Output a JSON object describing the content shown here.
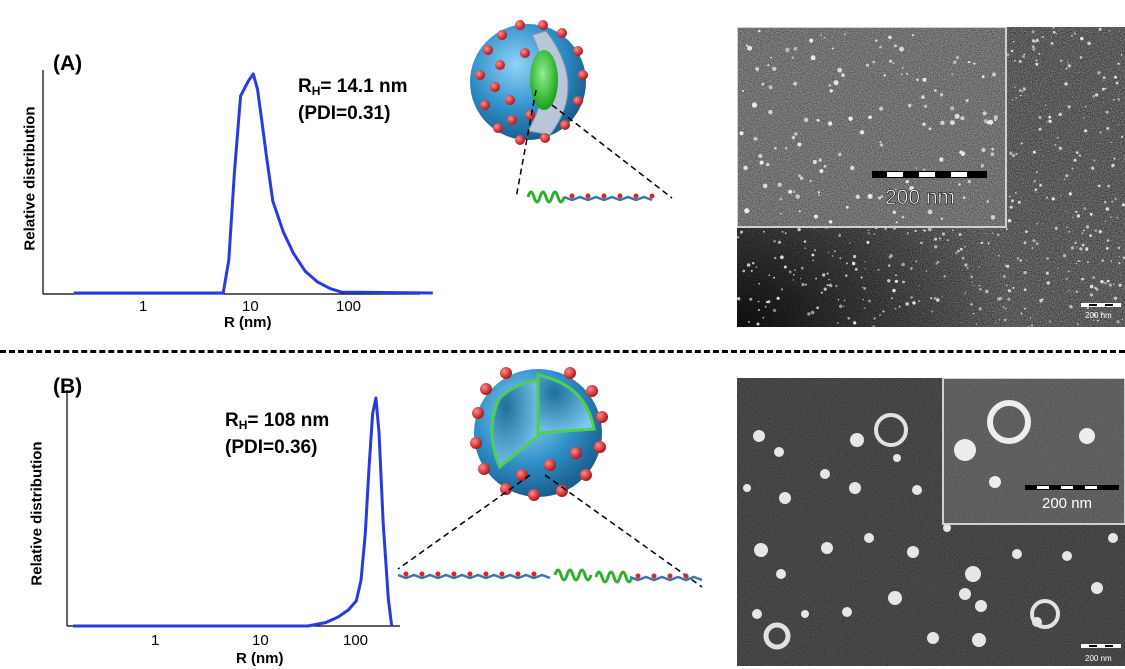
{
  "panel_a": {
    "label": "(A)",
    "rh_prefix": "R",
    "rh_sub": "H",
    "rh_value": "= 14.1 nm",
    "pdi": "(PDI=0.31)",
    "micrograph_scale_main": "200 nm",
    "micrograph_scale_inset": "200 nm"
  },
  "panel_b": {
    "label": "(B)",
    "rh_prefix": "R",
    "rh_sub": "H",
    "rh_value": "= 108 nm",
    "pdi": "(PDI=0.36)",
    "micrograph_scale_main": "200 nm",
    "micrograph_scale_inset": "200 nm"
  },
  "colors": {
    "curve": "#2a3adf",
    "sphere": "#3b9fd6",
    "bead": "#d8262b",
    "helix": "#33bb33"
  },
  "chart_data": [
    {
      "type": "line",
      "title": "",
      "xlabel": "R (nm)",
      "ylabel": "Relative distribution",
      "x_scale": "log",
      "x_tick_labels": [
        "1",
        "10",
        "100"
      ],
      "series": [
        {
          "x": [
            0.22,
            5.5,
            6.2,
            7.0,
            8.0,
            9.5,
            10.5,
            11.5,
            12.5,
            14,
            16,
            20,
            25,
            32,
            42,
            55,
            70,
            500
          ],
          "y": [
            0,
            0,
            0.15,
            0.55,
            0.9,
            0.97,
            1.0,
            0.93,
            0.8,
            0.62,
            0.42,
            0.28,
            0.18,
            0.1,
            0.05,
            0.02,
            0.004,
            0
          ]
        }
      ]
    },
    {
      "type": "line",
      "title": "",
      "xlabel": "R (nm)",
      "ylabel": "Relative distribution",
      "x_scale": "log",
      "x_tick_labels": [
        "1",
        "10",
        "100"
      ],
      "series": [
        {
          "x": [
            0.15,
            30,
            45,
            60,
            75,
            90,
            100,
            110,
            120,
            130,
            140,
            150,
            165,
            185,
            200
          ],
          "y": [
            0,
            0,
            0.015,
            0.04,
            0.07,
            0.11,
            0.2,
            0.4,
            0.7,
            0.93,
            1.0,
            0.85,
            0.45,
            0.12,
            0
          ]
        }
      ]
    }
  ]
}
